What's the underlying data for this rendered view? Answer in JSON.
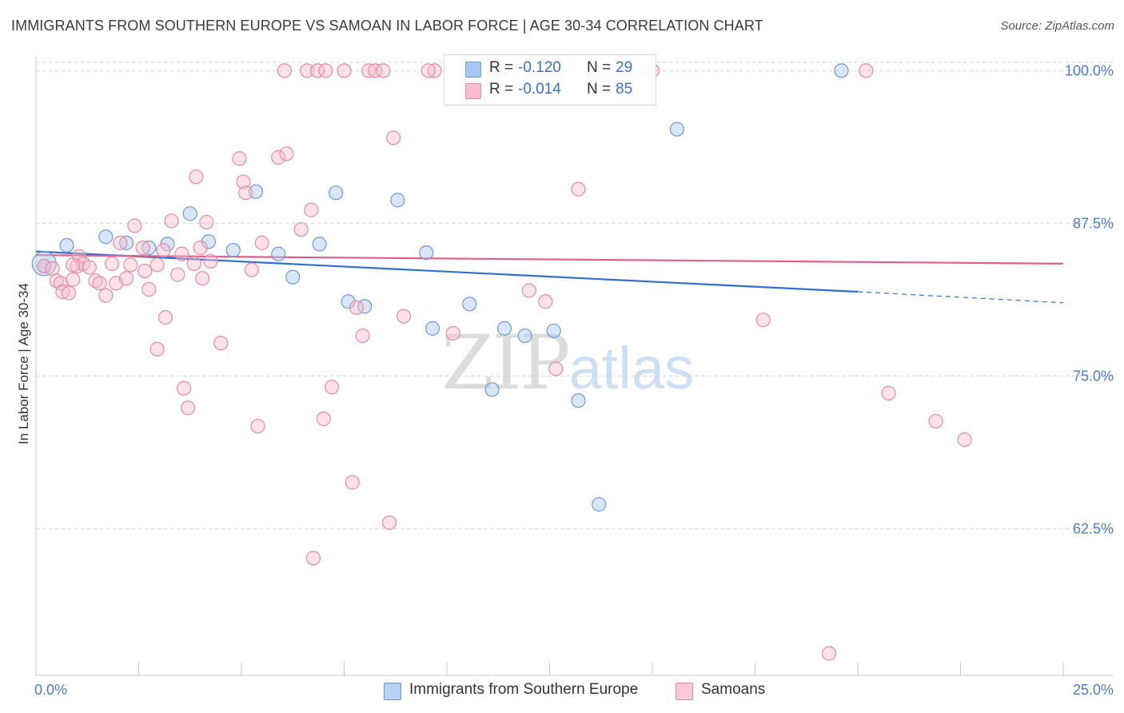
{
  "title": "IMMIGRANTS FROM SOUTHERN EUROPE VS SAMOAN IN LABOR FORCE | AGE 30-34 CORRELATION CHART",
  "source": "Source: ZipAtlas.com",
  "watermark": {
    "zip": "ZIP",
    "atlas": "atlas"
  },
  "legend": {
    "rows": [
      {
        "r_label": "R =",
        "r_value": "-0.120",
        "n_label": "N =",
        "n_value": "29",
        "color": "#a9c8f0",
        "border": "#6b9ad8"
      },
      {
        "r_label": "R =",
        "r_value": "-0.014",
        "n_label": "N =",
        "n_value": "85",
        "color": "#f7bccd",
        "border": "#e58aa6"
      }
    ]
  },
  "bottom_legend": [
    {
      "label": "Immigrants from Southern Europe",
      "color": "#b8d1f3",
      "border": "#6b9ad8"
    },
    {
      "label": "Samoans",
      "color": "#f9c9d7",
      "border": "#e58aa6"
    }
  ],
  "chart_data": {
    "type": "scatter",
    "title": "IMMIGRANTS FROM SOUTHERN EUROPE VS SAMOAN IN LABOR FORCE | AGE 30-34 CORRELATION CHART",
    "xlabel": "",
    "ylabel": "In Labor Force | Age 30-34",
    "xlim": [
      0,
      25
    ],
    "ylim": [
      50.5,
      101.2
    ],
    "x_tick_labels": [
      "0.0%",
      "25.0%"
    ],
    "y_ticks": [
      62.5,
      75.0,
      87.5,
      100.0
    ],
    "y_tick_labels": [
      "62.5%",
      "75.0%",
      "87.5%",
      "100.0%"
    ],
    "grid": "horizontal dashed",
    "series": [
      {
        "name": "Immigrants from Southern Europe",
        "color": "#a9c8f0",
        "stroke": "#6b9ad8",
        "trend": {
          "x": [
            0,
            20
          ],
          "y": [
            85.2,
            81.9
          ],
          "dashed_to": [
            25,
            81.0
          ],
          "color": "#2f6fcd"
        },
        "points": [
          [
            0.2,
            84.2,
            "big"
          ],
          [
            0.75,
            85.7
          ],
          [
            1.7,
            86.4
          ],
          [
            2.2,
            85.9
          ],
          [
            2.75,
            85.5
          ],
          [
            3.2,
            85.8
          ],
          [
            3.75,
            88.3
          ],
          [
            4.2,
            86.0
          ],
          [
            4.8,
            85.3
          ],
          [
            5.35,
            90.1
          ],
          [
            5.9,
            85.0
          ],
          [
            6.25,
            83.1
          ],
          [
            6.9,
            85.8
          ],
          [
            7.3,
            90.0
          ],
          [
            7.6,
            81.1
          ],
          [
            8.0,
            80.7
          ],
          [
            8.8,
            89.4
          ],
          [
            9.5,
            85.1
          ],
          [
            9.65,
            78.9
          ],
          [
            10.55,
            80.9
          ],
          [
            11.1,
            73.9
          ],
          [
            11.4,
            78.9
          ],
          [
            11.9,
            78.3
          ],
          [
            12.6,
            78.7
          ],
          [
            13.2,
            73.0
          ],
          [
            13.7,
            64.5
          ],
          [
            15.6,
            95.2
          ],
          [
            19.6,
            100.0
          ],
          [
            0.2,
            84.0
          ]
        ]
      },
      {
        "name": "Samoans",
        "color": "#f7bccd",
        "stroke": "#e58aa6",
        "trend": {
          "x": [
            0,
            25
          ],
          "y": [
            84.9,
            84.2
          ],
          "color": "#e0608d"
        },
        "points": [
          [
            0.2,
            84.0
          ],
          [
            0.4,
            83.8
          ],
          [
            0.5,
            82.8
          ],
          [
            0.6,
            82.6
          ],
          [
            0.65,
            81.9
          ],
          [
            0.8,
            81.8
          ],
          [
            0.9,
            82.9
          ],
          [
            1.0,
            84.0
          ],
          [
            1.05,
            84.8
          ],
          [
            1.15,
            84.2
          ],
          [
            1.3,
            83.9
          ],
          [
            1.45,
            82.8
          ],
          [
            1.55,
            82.6
          ],
          [
            1.7,
            81.6
          ],
          [
            1.85,
            84.2
          ],
          [
            1.95,
            82.6
          ],
          [
            2.05,
            85.9
          ],
          [
            2.2,
            83.0
          ],
          [
            2.3,
            84.1
          ],
          [
            2.4,
            87.3
          ],
          [
            2.6,
            85.5
          ],
          [
            2.65,
            83.6
          ],
          [
            2.75,
            82.1
          ],
          [
            2.95,
            84.1
          ],
          [
            2.95,
            77.2
          ],
          [
            3.1,
            85.3
          ],
          [
            3.15,
            79.8
          ],
          [
            3.3,
            87.7
          ],
          [
            3.45,
            83.3
          ],
          [
            3.55,
            85.0
          ],
          [
            3.6,
            74.0
          ],
          [
            3.7,
            72.4
          ],
          [
            3.85,
            84.2
          ],
          [
            3.9,
            91.3
          ],
          [
            4.0,
            85.5
          ],
          [
            4.05,
            83.0
          ],
          [
            4.15,
            87.6
          ],
          [
            4.25,
            84.4
          ],
          [
            4.5,
            77.7
          ],
          [
            4.95,
            92.8
          ],
          [
            5.05,
            90.9
          ],
          [
            5.1,
            90.0
          ],
          [
            5.25,
            83.7
          ],
          [
            5.4,
            70.9
          ],
          [
            5.5,
            85.9
          ],
          [
            5.9,
            92.9
          ],
          [
            6.05,
            100.0
          ],
          [
            6.1,
            93.2
          ],
          [
            6.45,
            87.0
          ],
          [
            6.6,
            100.0
          ],
          [
            6.7,
            88.6
          ],
          [
            6.85,
            100.0
          ],
          [
            7.05,
            100.0
          ],
          [
            7.0,
            71.5
          ],
          [
            7.2,
            74.1
          ],
          [
            7.7,
            66.3
          ],
          [
            7.8,
            80.6
          ],
          [
            7.95,
            78.3
          ],
          [
            8.1,
            100.0
          ],
          [
            8.25,
            100.0
          ],
          [
            8.45,
            100.0
          ],
          [
            8.6,
            63.0
          ],
          [
            8.7,
            94.5
          ],
          [
            8.95,
            79.9
          ],
          [
            9.7,
            100.0
          ],
          [
            10.15,
            78.5
          ],
          [
            10.55,
            100.0
          ],
          [
            10.9,
            100.0
          ],
          [
            11.3,
            100.0
          ],
          [
            12.4,
            81.1
          ],
          [
            12.65,
            75.6
          ],
          [
            13.2,
            90.3
          ],
          [
            13.9,
            100.0
          ],
          [
            15.0,
            100.0
          ],
          [
            17.7,
            79.6
          ],
          [
            20.2,
            100.0
          ],
          [
            20.75,
            73.6
          ],
          [
            21.9,
            71.3
          ],
          [
            22.6,
            69.8
          ],
          [
            19.3,
            52.3
          ],
          [
            6.75,
            60.1
          ],
          [
            7.5,
            100.0
          ],
          [
            12.0,
            82.0
          ],
          [
            9.55,
            100.0
          ],
          [
            0.9,
            84.1
          ]
        ]
      }
    ]
  }
}
